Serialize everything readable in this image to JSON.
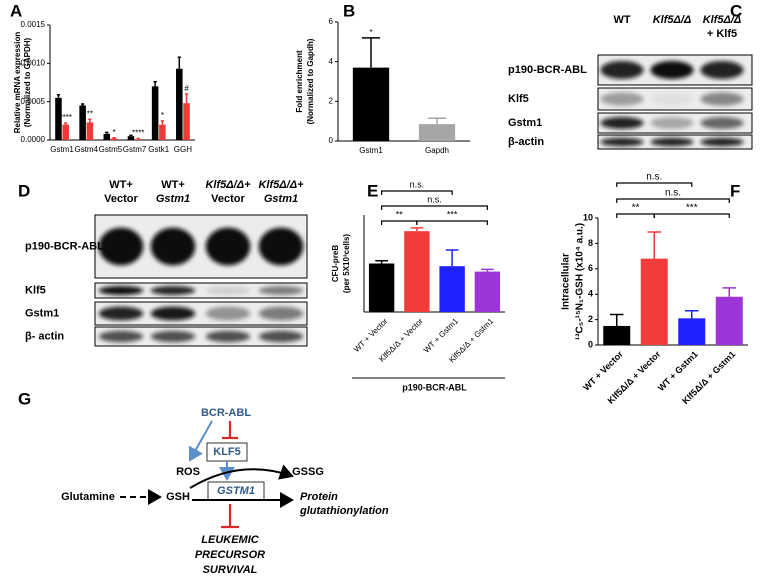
{
  "panel_labels": [
    "A",
    "B",
    "C",
    "D",
    "E",
    "F",
    "G"
  ],
  "chart_data": [
    {
      "type": "bar",
      "ylabel": [
        "Relative mRNA expression",
        "(Normalized to GAPDH)"
      ],
      "categories": [
        "Gstm1",
        "Gstm4",
        "Gstm5",
        "Gstm7",
        "Gstk1",
        "GGH"
      ],
      "series": [
        {
          "color": "#000000",
          "values": [
            0.00055,
            0.00045,
            8e-05,
            5e-05,
            0.0007,
            0.00093
          ],
          "errors": [
            4e-05,
            2e-05,
            2e-05,
            1e-05,
            6e-05,
            0.00015
          ]
        },
        {
          "color": "#f03a3a",
          "values": [
            0.0002,
            0.00023,
            2e-05,
            1e-05,
            0.0002,
            0.00048
          ],
          "errors": [
            2e-05,
            4e-05,
            1e-05,
            1e-05,
            5e-05,
            0.00012
          ],
          "annotations": [
            "****",
            "**",
            "*",
            "****",
            "*",
            "#"
          ]
        }
      ],
      "ylim": [
        0,
        0.0015
      ],
      "yticks": [
        {
          "value": 0,
          "label": "0.0000"
        },
        {
          "value": 0.0005,
          "label": "0.0005"
        },
        {
          "value": 0.001,
          "label": "0.0010"
        },
        {
          "value": 0.0015,
          "label": "0.0015"
        }
      ]
    },
    {
      "type": "bar",
      "ylabel": [
        "Fold enrichment",
        "(Normalized to Gapdh)"
      ],
      "categories": [
        "Gstm1",
        "Gapdh"
      ],
      "values": [
        3.7,
        0.85
      ],
      "errors": [
        1.5,
        0.3
      ],
      "colors": [
        "#000000",
        "#a6a6a6"
      ],
      "annotations": [
        "*",
        null
      ],
      "ylim": [
        0,
        6
      ],
      "yticks": [
        0,
        2,
        4,
        6
      ]
    },
    {
      "type": "bar",
      "ylabel": [
        "CFU-preB",
        "(per 5X10³cells)"
      ],
      "categories": [
        "WT + Vector",
        "Klf5Δ/Δ + Vector",
        "WT + Gstm1",
        "Klf5Δ/Δ + Gstm1"
      ],
      "values": [
        90,
        150,
        85,
        75
      ],
      "errors": [
        5,
        6,
        30,
        4
      ],
      "colors": [
        "#000000",
        "#f23c3c",
        "#1f22ff",
        "#9b35d6"
      ],
      "significance": [
        "n.s.",
        "n.s.",
        "**",
        "***"
      ],
      "xlabel": "p190-BCR-ABL",
      "ylim": [
        0,
        180
      ]
    },
    {
      "type": "bar",
      "ylabel": [
        "Intracellular",
        "¹³C₅-¹⁵N₁-GSH (x10⁴ a.u.)"
      ],
      "categories": [
        "WT + Vector",
        "Klf5Δ/Δ + Vector",
        "WT + Gstm1",
        "Klf5Δ/Δ + Gstm1"
      ],
      "values": [
        1.5,
        6.8,
        2.1,
        3.8
      ],
      "errors": [
        0.9,
        2.1,
        0.6,
        0.7
      ],
      "colors": [
        "#000000",
        "#f23c3c",
        "#1f22ff",
        "#9b35d6"
      ],
      "significance": [
        "n.s.",
        "n.s.",
        "**",
        "***"
      ],
      "ylim": [
        0,
        10
      ],
      "yticks": [
        0,
        2,
        4,
        6,
        8,
        10
      ]
    }
  ],
  "blots": [
    {
      "columns": [
        [
          "WT"
        ],
        [
          "Klf5Δ/Δ"
        ],
        [
          "Klf5Δ/Δ",
          "+ Klf5"
        ]
      ],
      "rows": [
        "p190-BCR-ABL",
        "Klf5",
        "Gstm1",
        "β-actin"
      ]
    },
    {
      "columns": [
        [
          "WT+",
          "Vector"
        ],
        [
          "WT+",
          "Gstm1"
        ],
        [
          "Klf5Δ/Δ+",
          "Vector"
        ],
        [
          "Klf5Δ/Δ+",
          "Gstm1"
        ]
      ],
      "rows": [
        "p190-BCR-ABL",
        "Klf5",
        "Gstm1",
        "β- actin"
      ]
    }
  ],
  "diagram": {
    "upstream": "BCR-ABL",
    "factor": "KLF5",
    "ros": "ROS",
    "gssg": "GSSG",
    "glutamine": "Glutamine",
    "gsh": "GSH",
    "enzyme": "GSTM1",
    "outcome": [
      "Protein",
      "glutathionylation"
    ],
    "phenotype": [
      "LEUKEMIC",
      "PRECURSOR",
      "SURVIVAL"
    ]
  }
}
